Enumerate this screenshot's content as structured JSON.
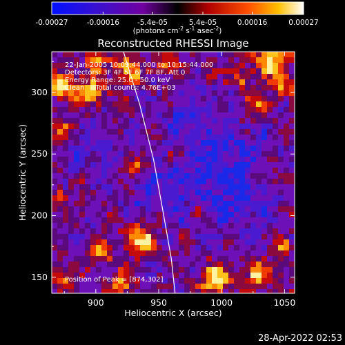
{
  "colorbar": {
    "ticks": [
      "-0.00027",
      "-0.00016",
      "-5.4e-05",
      "5.4e-05",
      "0.00016",
      "0.00027"
    ],
    "tick_values": [
      -0.00027,
      -0.00016,
      -5.4e-05,
      5.4e-05,
      0.00016,
      0.00027
    ],
    "range": [
      -0.00027,
      0.00027
    ],
    "units_main": "(photons cm",
    "units_sup1": "-2",
    "units_mid": " s",
    "units_sup2": "-1",
    "units_end": " asec",
    "units_sup3": "-2",
    "units_close": ")"
  },
  "chart_data": {
    "type": "heatmap",
    "title": "Reconstructed RHESSI Image",
    "xlabel": "Heliocentric X (arcsec)",
    "ylabel": "Heliocentric Y (arcsec)",
    "xlim": [
      865,
      1058
    ],
    "ylim": [
      137,
      333
    ],
    "xticks": [
      900,
      950,
      1000,
      1050
    ],
    "yticks": [
      150,
      200,
      250,
      300
    ],
    "limb_curve": {
      "points": [
        [
          922,
          333
        ],
        [
          935,
          290
        ],
        [
          946,
          245
        ],
        [
          954,
          200
        ],
        [
          960,
          165
        ],
        [
          963,
          137
        ]
      ]
    },
    "annotations": [
      "22-Jan-2005 10:09:44.000 to 10:15:44.000",
      "Detectors: 3F 4F 5F 6F 7F 8F, Att 0",
      "Energy Range: 25.0 - 50.0 keV",
      "Clean     Total counts: 4.76E+03",
      "Position of Peak = [874,302]"
    ],
    "peak_position": [
      874,
      302
    ],
    "energy_range_kev": [
      25.0,
      50.0
    ],
    "total_counts": 4760
  },
  "footer": {
    "timestamp": "28-Apr-2022 02:53"
  }
}
